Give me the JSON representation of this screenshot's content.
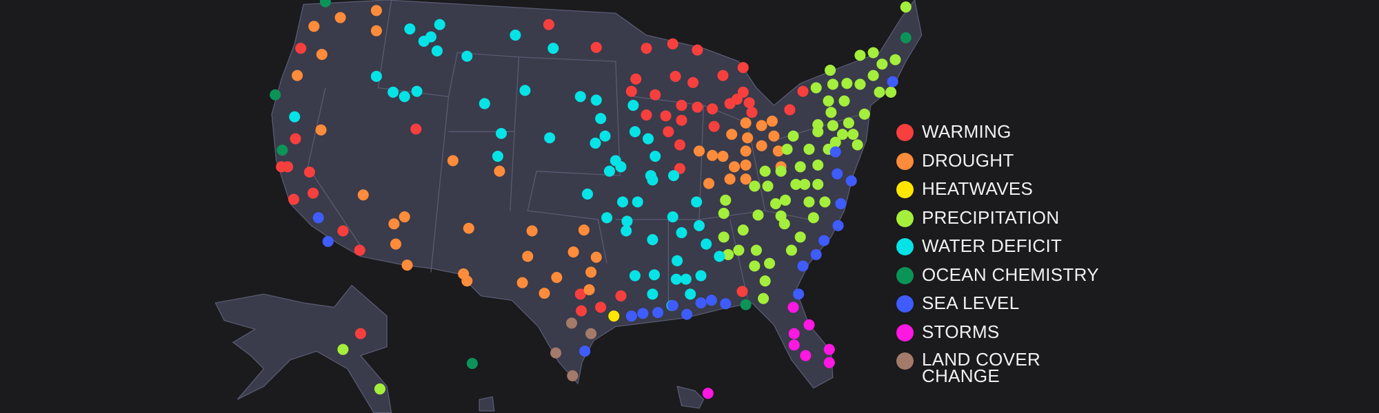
{
  "legend": {
    "items": [
      {
        "label": "WARMING",
        "color": "#f7403e"
      },
      {
        "label": "DROUGHT",
        "color": "#ff8c3a"
      },
      {
        "label": "HEATWAVES",
        "color": "#ffe600"
      },
      {
        "label": "PRECIPITATION",
        "color": "#a4ee3c"
      },
      {
        "label": "WATER DEFICIT",
        "color": "#06e3e6"
      },
      {
        "label": "OCEAN CHEMISTRY",
        "color": "#0b9458"
      },
      {
        "label": "SEA LEVEL",
        "color": "#3f5cff"
      },
      {
        "label": "STORMS",
        "color": "#ff17e2"
      },
      {
        "label": "LAND COVER CHANGE",
        "color": "#a47a6a"
      }
    ]
  }
}
